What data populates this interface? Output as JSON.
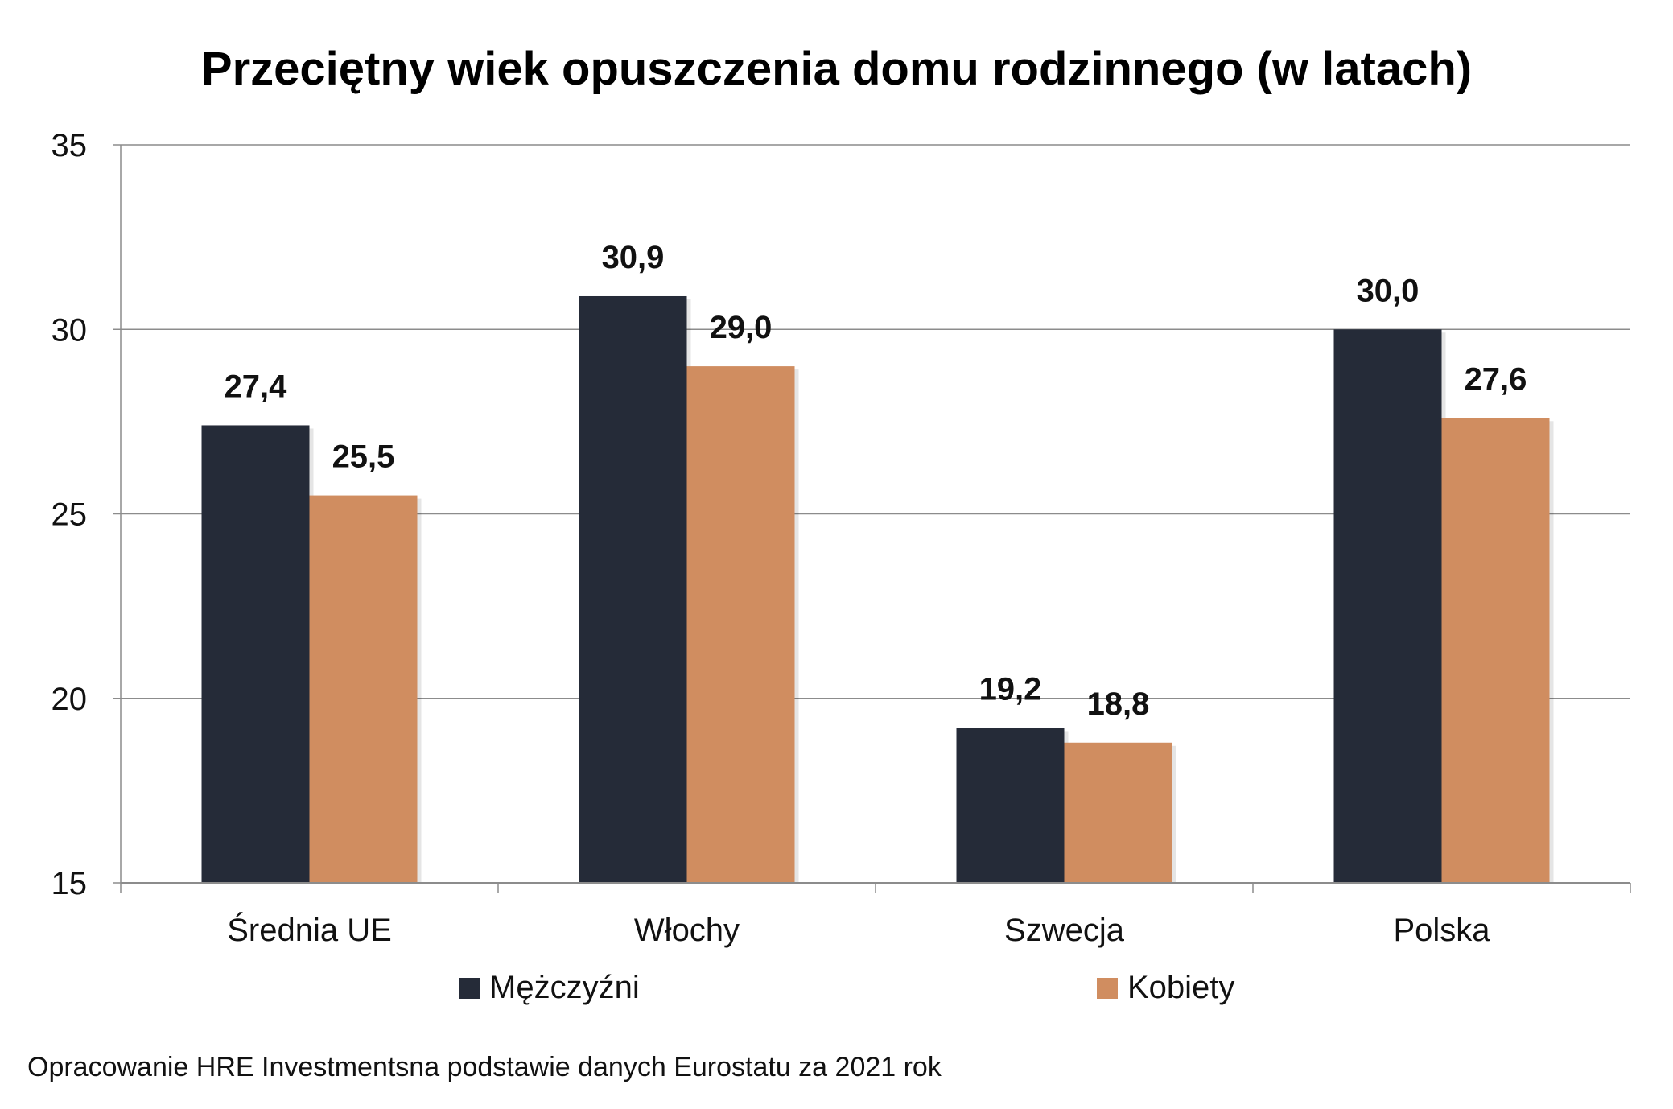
{
  "chart_data": {
    "type": "bar",
    "title": "Przeciętny wiek opuszczenia domu rodzinnego (w latach)",
    "categories": [
      "Średnia UE",
      "Włochy",
      "Szwecja",
      "Polska"
    ],
    "series": [
      {
        "name": "Mężczyźni",
        "color": "#252b38",
        "values": [
          27.4,
          30.9,
          19.2,
          30.0
        ],
        "labels": [
          "27,4",
          "30,9",
          "19,2",
          "30,0"
        ]
      },
      {
        "name": "Kobiety",
        "color": "#d08d60",
        "values": [
          25.5,
          29.0,
          18.8,
          27.6
        ],
        "labels": [
          "25,5",
          "29,0",
          "18,8",
          "27,6"
        ]
      }
    ],
    "ylim": [
      15,
      35
    ],
    "yticks": [
      15,
      20,
      25,
      30,
      35
    ],
    "ytick_labels": [
      "15",
      "20",
      "25",
      "30",
      "35"
    ],
    "xlabel": "",
    "ylabel": "",
    "grid": true,
    "legend_position": "bottom"
  },
  "source_note": "Opracowanie HRE Investmentsna podstawie danych Eurostatu za 2021 rok"
}
